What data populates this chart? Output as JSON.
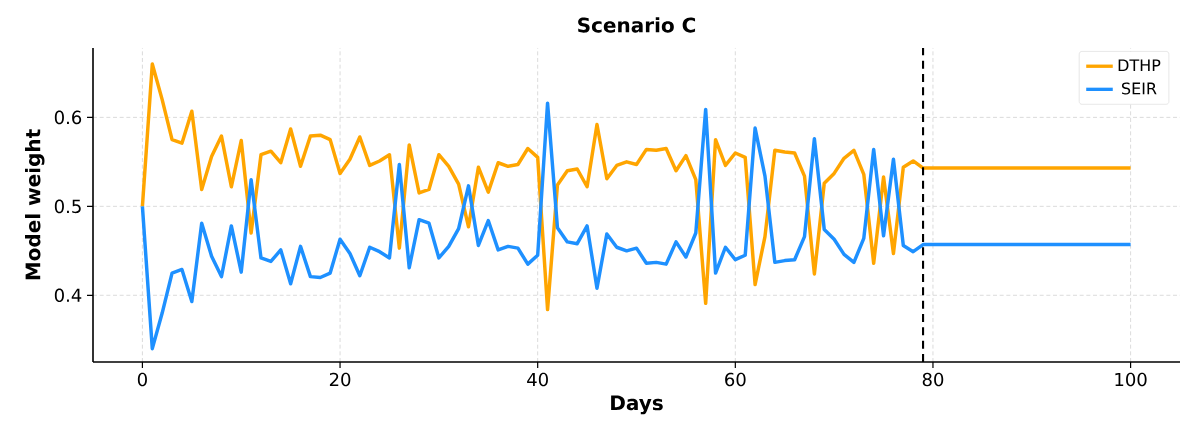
{
  "chart_data": {
    "type": "line",
    "title": "Scenario C",
    "xlabel": "Days",
    "ylabel": "Model weight",
    "x": [
      0,
      1,
      2,
      3,
      4,
      5,
      6,
      7,
      8,
      9,
      10,
      11,
      12,
      13,
      14,
      15,
      16,
      17,
      18,
      19,
      20,
      21,
      22,
      23,
      24,
      25,
      26,
      27,
      28,
      29,
      30,
      31,
      32,
      33,
      34,
      35,
      36,
      37,
      38,
      39,
      40,
      41,
      42,
      43,
      44,
      45,
      46,
      47,
      48,
      49,
      50,
      51,
      52,
      53,
      54,
      55,
      56,
      57,
      58,
      59,
      60,
      61,
      62,
      63,
      64,
      65,
      66,
      67,
      68,
      69,
      70,
      71,
      72,
      73,
      74,
      75,
      76,
      77,
      78,
      79,
      100
    ],
    "series": [
      {
        "name": "DTHP",
        "color": "#ffa500",
        "values": [
          0.5,
          0.66,
          0.62,
          0.575,
          0.571,
          0.607,
          0.519,
          0.556,
          0.579,
          0.522,
          0.574,
          0.47,
          0.558,
          0.562,
          0.549,
          0.587,
          0.545,
          0.579,
          0.58,
          0.575,
          0.537,
          0.553,
          0.578,
          0.546,
          0.551,
          0.558,
          0.453,
          0.569,
          0.515,
          0.519,
          0.558,
          0.545,
          0.525,
          0.477,
          0.544,
          0.516,
          0.549,
          0.545,
          0.547,
          0.565,
          0.555,
          0.384,
          0.524,
          0.54,
          0.542,
          0.522,
          0.592,
          0.531,
          0.546,
          0.55,
          0.547,
          0.564,
          0.563,
          0.565,
          0.54,
          0.557,
          0.53,
          0.391,
          0.575,
          0.546,
          0.56,
          0.555,
          0.412,
          0.466,
          0.563,
          0.561,
          0.56,
          0.534,
          0.424,
          0.526,
          0.537,
          0.554,
          0.563,
          0.536,
          0.436,
          0.533,
          0.447,
          0.544,
          0.551,
          0.543,
          0.543
        ]
      },
      {
        "name": "SEIR",
        "color": "#1e90ff",
        "values": [
          0.5,
          0.34,
          0.38,
          0.425,
          0.429,
          0.393,
          0.481,
          0.444,
          0.421,
          0.478,
          0.426,
          0.53,
          0.442,
          0.438,
          0.451,
          0.413,
          0.455,
          0.421,
          0.42,
          0.425,
          0.463,
          0.447,
          0.422,
          0.454,
          0.449,
          0.442,
          0.547,
          0.431,
          0.485,
          0.481,
          0.442,
          0.455,
          0.475,
          0.523,
          0.456,
          0.484,
          0.451,
          0.455,
          0.453,
          0.435,
          0.445,
          0.616,
          0.476,
          0.46,
          0.458,
          0.478,
          0.408,
          0.469,
          0.454,
          0.45,
          0.453,
          0.436,
          0.437,
          0.435,
          0.46,
          0.443,
          0.47,
          0.609,
          0.425,
          0.454,
          0.44,
          0.445,
          0.588,
          0.534,
          0.437,
          0.439,
          0.44,
          0.466,
          0.576,
          0.474,
          0.463,
          0.446,
          0.437,
          0.464,
          0.564,
          0.467,
          0.553,
          0.456,
          0.449,
          0.457,
          0.457
        ]
      }
    ],
    "xlim": [
      -5,
      105
    ],
    "ylim": [
      0.325,
      0.678
    ],
    "xticks": [
      0,
      20,
      40,
      60,
      80,
      100
    ],
    "yticks": [
      0.4,
      0.5,
      0.6
    ],
    "ref_lines": [
      {
        "axis": "x",
        "value": 79,
        "color": "#000000",
        "line_style": "dashed"
      }
    ],
    "grid": true,
    "legend": "top right",
    "line_style": "solid",
    "marker": "none"
  }
}
